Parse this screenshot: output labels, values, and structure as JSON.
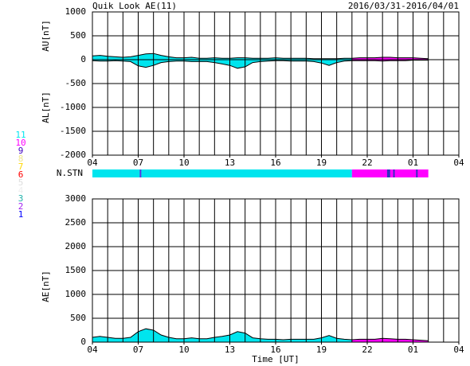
{
  "header": {
    "title": "Quik Look AE(11)",
    "date_range": "2016/03/31-2016/04/01"
  },
  "station_legend": [
    {
      "label": 11,
      "color": "#00e5ee"
    },
    {
      "label": 10,
      "color": "#ff00ff"
    },
    {
      "label": 9,
      "color": "#4000c0"
    },
    {
      "label": 8,
      "color": "#f0e68c"
    },
    {
      "label": 7,
      "color": "#ffd700"
    },
    {
      "label": 6,
      "color": "#ff0000"
    },
    {
      "label": 5,
      "color": "#dddddd"
    },
    {
      "label": 4,
      "color": "#eeeeee"
    },
    {
      "label": 3,
      "color": "#20b2aa"
    },
    {
      "label": 2,
      "color": "#a020f0"
    },
    {
      "label": 1,
      "color": "#0000ff"
    }
  ],
  "station_bar": {
    "label": "N.STN",
    "segments": [
      {
        "from": 0,
        "to": 17,
        "color": "#00e5ee"
      },
      {
        "from": 17,
        "to": 22,
        "color": "#ff00ff"
      },
      {
        "from": 3.1,
        "to": 3.2,
        "color": "#6030e0"
      },
      {
        "from": 19.3,
        "to": 19.5,
        "color": "#3030c0"
      },
      {
        "from": 19.7,
        "to": 19.8,
        "color": "#3030c0"
      },
      {
        "from": 21.2,
        "to": 21.3,
        "color": "#3030c0"
      }
    ]
  },
  "chart_data": [
    {
      "type": "area",
      "ylabels": [
        "AU[nT]",
        "AL[nT]"
      ],
      "xlim": [
        0,
        24
      ],
      "xgrid_step": 1,
      "xticks": [
        {
          "value": 0,
          "label": "04"
        },
        {
          "value": 3,
          "label": "07"
        },
        {
          "value": 6,
          "label": "10"
        },
        {
          "value": 9,
          "label": "13"
        },
        {
          "value": 12,
          "label": "16"
        },
        {
          "value": 15,
          "label": "19"
        },
        {
          "value": 18,
          "label": "22"
        },
        {
          "value": 21,
          "label": "01"
        },
        {
          "value": 24,
          "label": "04"
        }
      ],
      "ylim": [
        -2000,
        1000
      ],
      "yticks": [
        -2000,
        -1500,
        -1000,
        -500,
        0,
        500,
        1000
      ],
      "grid": true,
      "fill_segments": [
        {
          "from": 0,
          "to": 17,
          "color": "#00e5ee"
        },
        {
          "from": 17,
          "to": 22,
          "color": "#ff00ff"
        }
      ],
      "x": [
        0,
        0.5,
        1,
        1.5,
        2,
        2.5,
        3,
        3.5,
        4,
        4.5,
        5,
        5.5,
        6,
        6.5,
        7,
        7.5,
        8,
        8.5,
        9,
        9.5,
        10,
        10.5,
        11,
        11.5,
        12,
        12.5,
        13,
        13.5,
        14,
        14.5,
        15,
        15.5,
        16,
        16.5,
        17,
        17.5,
        18,
        18.5,
        19,
        19.5,
        20,
        20.5,
        21,
        21.5,
        22
      ],
      "series": [
        {
          "color": "#000000",
          "values": [
            80,
            90,
            70,
            60,
            50,
            60,
            90,
            120,
            130,
            90,
            60,
            40,
            40,
            50,
            30,
            30,
            40,
            30,
            30,
            40,
            40,
            30,
            30,
            30,
            40,
            30,
            30,
            30,
            30,
            20,
            20,
            20,
            20,
            30,
            30,
            40,
            40,
            40,
            50,
            50,
            40,
            40,
            40,
            30,
            20
          ]
        },
        {
          "color": "#000000",
          "values": [
            -20,
            -30,
            -30,
            -20,
            -30,
            -40,
            -130,
            -160,
            -120,
            -60,
            -40,
            -30,
            -30,
            -40,
            -40,
            -40,
            -60,
            -90,
            -120,
            -180,
            -150,
            -60,
            -40,
            -30,
            -20,
            -20,
            -30,
            -30,
            -30,
            -40,
            -70,
            -120,
            -60,
            -30,
            -20,
            -20,
            -20,
            -20,
            -30,
            -20,
            -20,
            -20,
            -10,
            -10,
            -10
          ]
        }
      ]
    },
    {
      "type": "area",
      "ylabels": [
        "AE[nT]"
      ],
      "xlabel": "Time [UT]",
      "xlim": [
        0,
        24
      ],
      "xgrid_step": 1,
      "xticks": [
        {
          "value": 0,
          "label": "04"
        },
        {
          "value": 3,
          "label": "07"
        },
        {
          "value": 6,
          "label": "10"
        },
        {
          "value": 9,
          "label": "13"
        },
        {
          "value": 12,
          "label": "16"
        },
        {
          "value": 15,
          "label": "19"
        },
        {
          "value": 18,
          "label": "22"
        },
        {
          "value": 21,
          "label": "01"
        },
        {
          "value": 24,
          "label": "04"
        }
      ],
      "ylim": [
        0,
        3000
      ],
      "yticks": [
        0,
        500,
        1000,
        1500,
        2000,
        2500,
        3000
      ],
      "grid": true,
      "fill_segments": [
        {
          "from": 0,
          "to": 17,
          "color": "#00e5ee"
        },
        {
          "from": 17,
          "to": 22,
          "color": "#ff00ff"
        }
      ],
      "x": [
        0,
        0.5,
        1,
        1.5,
        2,
        2.5,
        3,
        3.5,
        4,
        4.5,
        5,
        5.5,
        6,
        6.5,
        7,
        7.5,
        8,
        8.5,
        9,
        9.5,
        10,
        10.5,
        11,
        11.5,
        12,
        12.5,
        13,
        13.5,
        14,
        14.5,
        15,
        15.5,
        16,
        16.5,
        17,
        17.5,
        18,
        18.5,
        19,
        19.5,
        20,
        20.5,
        21,
        21.5,
        22
      ],
      "series": [
        {
          "color": "#000000",
          "values": [
            100,
            120,
            100,
            80,
            80,
            100,
            220,
            280,
            250,
            150,
            100,
            70,
            70,
            90,
            70,
            70,
            100,
            120,
            150,
            220,
            190,
            90,
            70,
            60,
            60,
            50,
            60,
            60,
            60,
            60,
            90,
            140,
            80,
            60,
            50,
            60,
            60,
            60,
            80,
            70,
            60,
            60,
            50,
            40,
            30
          ]
        }
      ]
    }
  ]
}
